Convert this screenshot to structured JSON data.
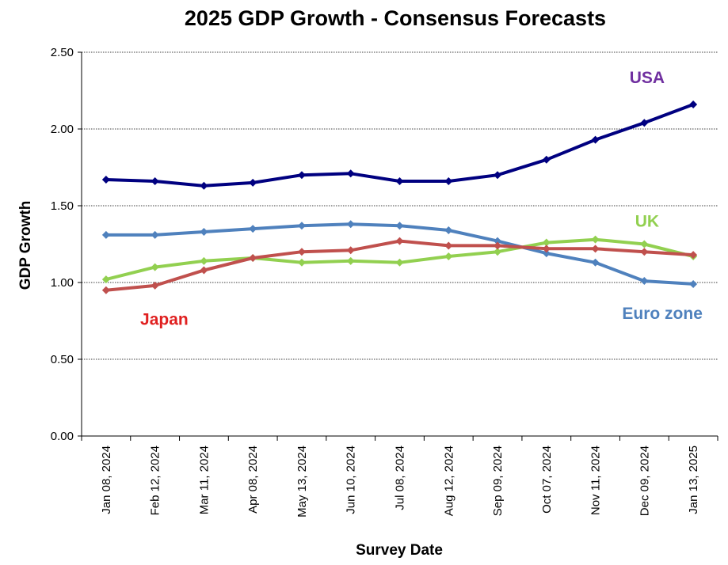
{
  "chart_data": {
    "type": "line",
    "title": "2025 GDP Growth - Consensus Forecasts",
    "xlabel": "Survey Date",
    "ylabel": "GDP Growth",
    "ylim": [
      0,
      2.5
    ],
    "yticks": [
      "0.00",
      "0.50",
      "1.00",
      "1.50",
      "2.00",
      "2.50"
    ],
    "grid": "horizontal dotted",
    "categories": [
      "Jan 08, 2024",
      "Feb 12, 2024",
      "Mar 11, 2024",
      "Apr 08, 2024",
      "May 13, 2024",
      "Jun 10, 2024",
      "Jul 08, 2024",
      "Aug 12, 2024",
      "Sep 09, 2024",
      "Oct 07, 2024",
      "Nov 11, 2024",
      "Dec 09, 2024",
      "Jan 13, 2025"
    ],
    "series": [
      {
        "name": "USA",
        "label": "USA",
        "color": "#000080",
        "label_color": "#7030A0",
        "label_anchor": "top-right",
        "values": [
          1.67,
          1.66,
          1.63,
          1.65,
          1.7,
          1.71,
          1.66,
          1.66,
          1.7,
          1.8,
          1.93,
          2.04,
          2.16
        ]
      },
      {
        "name": "Euro zone",
        "label": "Euro zone",
        "color": "#4F81BD",
        "label_color": "#4F81BD",
        "label_anchor": "bottom-right",
        "values": [
          1.31,
          1.31,
          1.33,
          1.35,
          1.37,
          1.38,
          1.37,
          1.34,
          1.27,
          1.19,
          1.13,
          1.01,
          0.99
        ]
      },
      {
        "name": "UK",
        "label": "UK",
        "color": "#92D050",
        "label_color": "#92D050",
        "label_anchor": "right",
        "values": [
          1.02,
          1.1,
          1.14,
          1.16,
          1.13,
          1.14,
          1.13,
          1.17,
          1.2,
          1.26,
          1.28,
          1.25,
          1.17
        ]
      },
      {
        "name": "Japan",
        "label": "Japan",
        "color": "#C0504D",
        "label_color": "#E02020",
        "label_anchor": "bottom-left",
        "values": [
          0.95,
          0.98,
          1.08,
          1.16,
          1.2,
          1.21,
          1.27,
          1.24,
          1.24,
          1.22,
          1.22,
          1.2,
          1.18
        ]
      }
    ]
  }
}
